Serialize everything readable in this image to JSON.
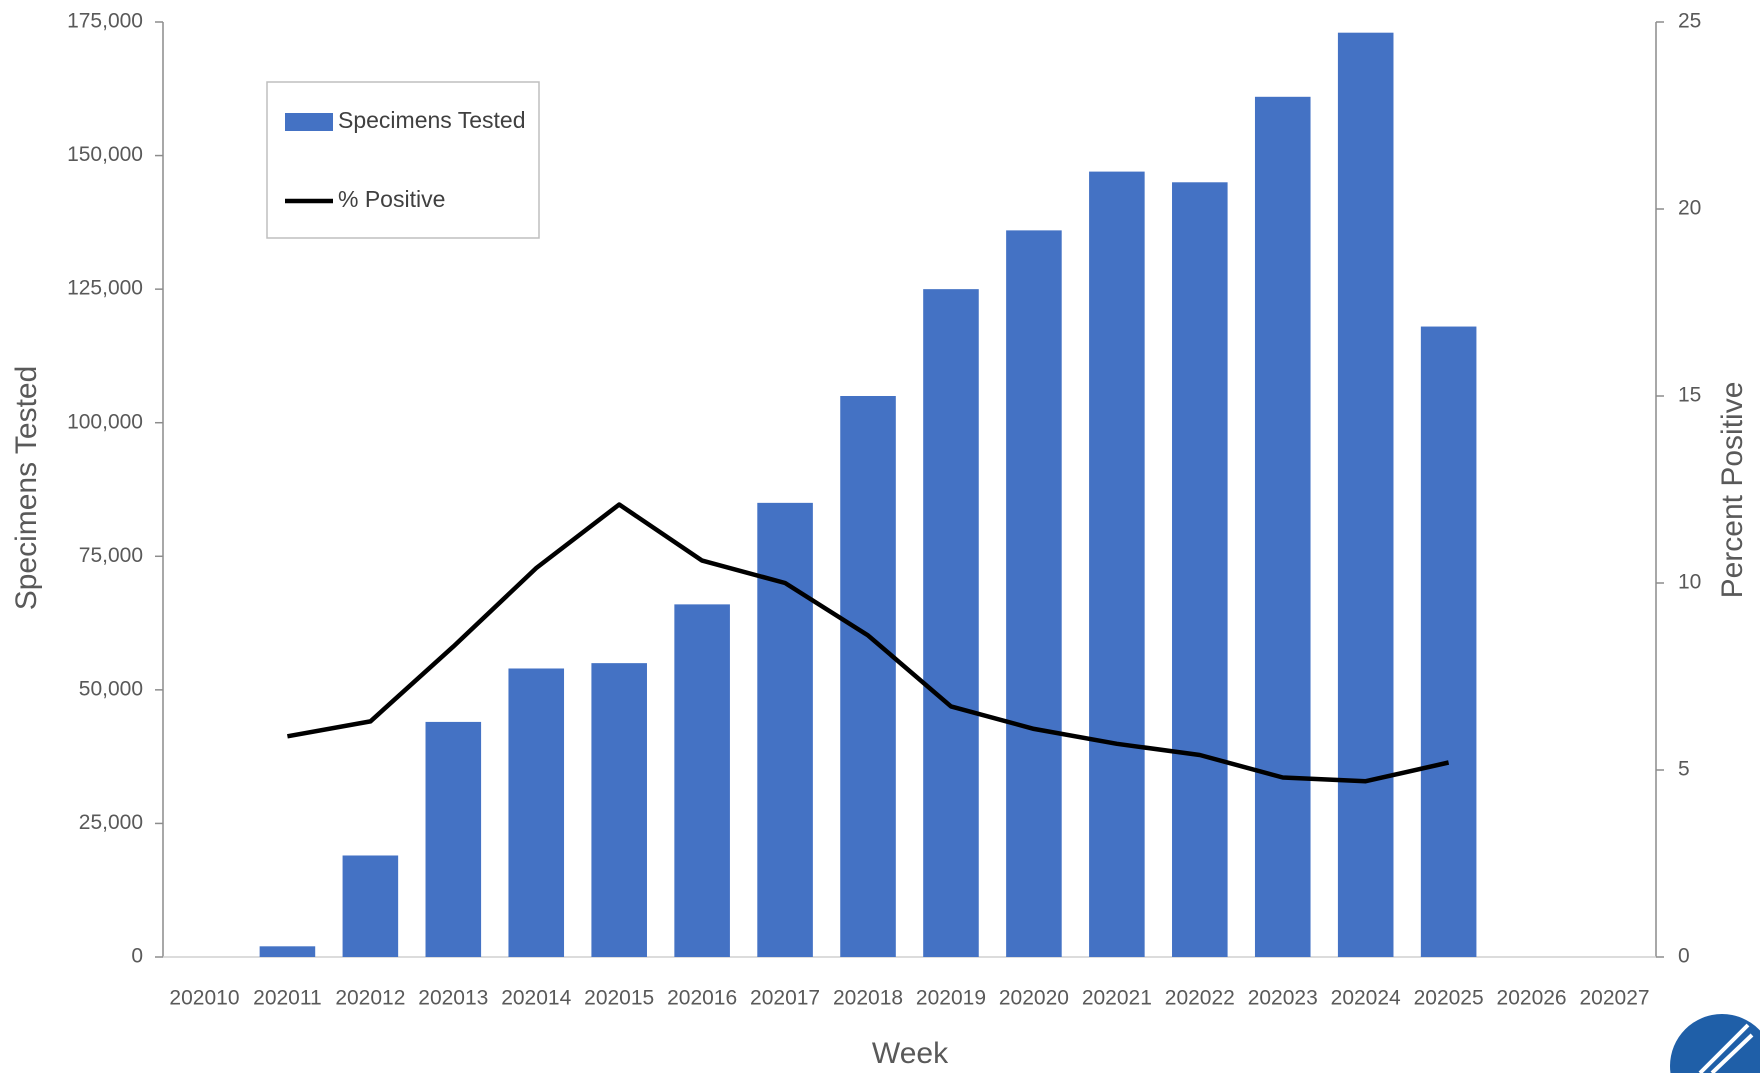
{
  "chart_data": {
    "type": "bar-line",
    "x_label": "Week",
    "y_label": "Specimens Tested",
    "y2_label": "Percent Positive",
    "categories": [
      "202010",
      "202011",
      "202012",
      "202013",
      "202014",
      "202015",
      "202016",
      "202017",
      "202018",
      "202019",
      "202020",
      "202021",
      "202022",
      "202023",
      "202024",
      "202025",
      "202026",
      "202027"
    ],
    "series": [
      {
        "name": "Specimens Tested",
        "type": "bar",
        "color": "#4472c4",
        "values": [
          null,
          2000,
          19000,
          44000,
          54000,
          55000,
          66000,
          85000,
          105000,
          125000,
          136000,
          147000,
          145000,
          161000,
          173000,
          118000,
          null,
          null
        ]
      },
      {
        "name": "% Positive",
        "type": "line",
        "color": "#000000",
        "axis": "y2",
        "values": [
          null,
          5.9,
          6.3,
          8.3,
          10.4,
          12.1,
          10.6,
          10.0,
          8.6,
          6.7,
          6.1,
          5.7,
          5.4,
          4.8,
          4.7,
          5.2,
          null,
          null
        ]
      }
    ],
    "ylim": [
      0,
      175000
    ],
    "yticks": [
      {
        "value": 0,
        "label": "0"
      },
      {
        "value": 25000,
        "label": "25,000"
      },
      {
        "value": 50000,
        "label": "50,000"
      },
      {
        "value": 75000,
        "label": "75,000"
      },
      {
        "value": 100000,
        "label": "100,000"
      },
      {
        "value": 125000,
        "label": "125,000"
      },
      {
        "value": 150000,
        "label": "150,000"
      },
      {
        "value": 175000,
        "label": "175,000"
      }
    ],
    "y2lim": [
      0,
      25
    ],
    "y2ticks": [
      0,
      5,
      10,
      15,
      20,
      25
    ],
    "grid": false,
    "legend": "upper-left"
  }
}
